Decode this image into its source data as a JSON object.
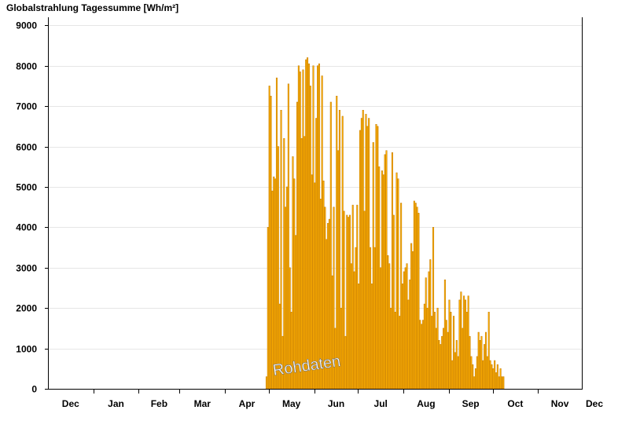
{
  "chart_data": {
    "type": "bar",
    "title": "Globalstrahlung Tagessumme [Wh/m²]",
    "watermark": "Rohdaten",
    "ylim": [
      0,
      9200
    ],
    "yticks": [
      0,
      1000,
      2000,
      3000,
      4000,
      5000,
      6000,
      7000,
      8000,
      9000
    ],
    "month_labels": [
      "Dec",
      "Jan",
      "Feb",
      "Mar",
      "Apr",
      "May",
      "Jun",
      "Jul",
      "Aug",
      "Sep",
      "Oct",
      "Nov",
      "Dec"
    ],
    "grid": true,
    "colors": {
      "bar_fill": "#ffb000",
      "bar_stroke": "#c07800",
      "grid": "#e6e6e6",
      "axis": "#000000"
    },
    "x_start": "2022-12-01",
    "x_end": "2023-12-01",
    "first_date": "2023-04-29",
    "values": [
      300,
      4000,
      7500,
      7250,
      4900,
      5250,
      5200,
      7700,
      6000,
      2100,
      6900,
      1300,
      6200,
      4500,
      5000,
      7550,
      3000,
      1900,
      5750,
      5200,
      3800,
      7100,
      8000,
      7850,
      6200,
      7900,
      6250,
      8150,
      8200,
      8050,
      7500,
      5300,
      8000,
      5100,
      6700,
      8000,
      8050,
      4700,
      7750,
      5150,
      4500,
      3700,
      4100,
      4200,
      7100,
      2800,
      4500,
      1500,
      7250,
      5900,
      6900,
      2000,
      6750,
      4400,
      1300,
      4300,
      4250,
      4300,
      3100,
      4550,
      2900,
      3500,
      4550,
      2600,
      6400,
      6700,
      6900,
      4400,
      6800,
      6500,
      6700,
      3500,
      2600,
      6100,
      3500,
      6550,
      6500,
      5500,
      3000,
      5400,
      5300,
      5800,
      5900,
      3300,
      3100,
      2000,
      5850,
      4300,
      1900,
      5350,
      5200,
      1800,
      4600,
      2600,
      2900,
      3000,
      3100,
      2200,
      2700,
      3600,
      3400,
      4650,
      4600,
      4500,
      4350,
      1700,
      1600,
      1700,
      2100,
      2750,
      2000,
      2900,
      3200,
      1800,
      4000,
      1900,
      1500,
      2000,
      1200,
      1100,
      1300,
      1500,
      2700,
      1700,
      1400,
      2200,
      1900,
      700,
      1800,
      900,
      1200,
      800,
      2200,
      2400,
      1500,
      2300,
      2200,
      1900,
      2300,
      1300,
      800,
      600,
      300,
      500,
      800,
      1400,
      1200,
      1300,
      700,
      1100,
      1400,
      800,
      1900,
      700,
      600,
      500,
      700,
      400,
      600,
      300,
      500,
      300,
      300
    ]
  }
}
